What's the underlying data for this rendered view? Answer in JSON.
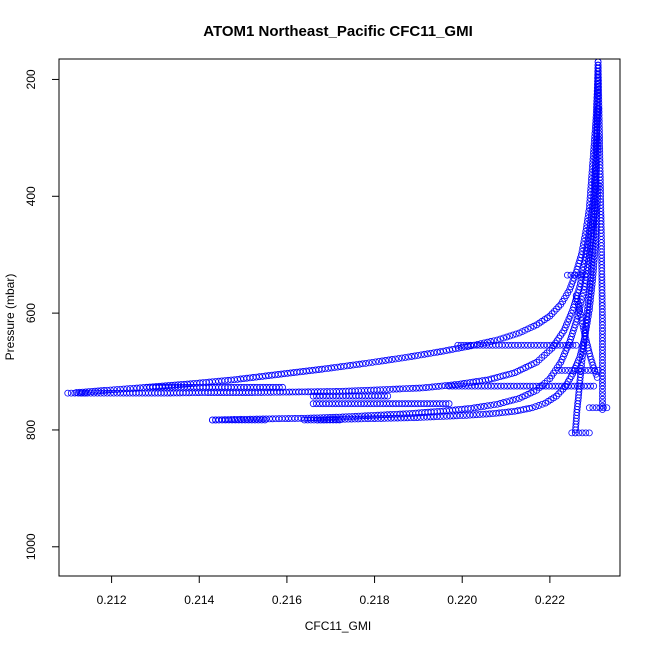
{
  "chart_data": {
    "type": "scatter",
    "title": "ATOM1 Northeast_Pacific CFC11_GMI",
    "xlabel": "CFC11_GMI",
    "ylabel": "Pressure (mbar)",
    "xlim": [
      0.2108,
      0.2236
    ],
    "ylim": [
      1050,
      165
    ],
    "y_reversed": true,
    "grid": false,
    "x_ticks": [
      "0.212",
      "0.214",
      "0.216",
      "0.218",
      "0.220",
      "0.222"
    ],
    "x_tick_values": [
      0.212,
      0.214,
      0.216,
      0.218,
      0.22,
      0.222
    ],
    "y_ticks": [
      "200",
      "400",
      "600",
      "800",
      "1000"
    ],
    "y_tick_values": [
      200,
      400,
      600,
      800,
      1000
    ],
    "marker": "open-circle",
    "color": "#0000ff",
    "series": [
      {
        "x": [
          0.2231,
          0.22308,
          0.22305,
          0.223,
          0.22295,
          0.2229,
          0.22282,
          0.22272,
          0.2226,
          0.22245,
          0.22225,
          0.222,
          0.2217,
          0.2213,
          0.2208,
          0.2202,
          0.2195,
          0.2187,
          0.2178,
          0.2168,
          0.2158,
          0.2148,
          0.2138,
          0.2128,
          0.2119,
          0.2112
        ],
        "y": [
          170,
          220,
          270,
          320,
          370,
          420,
          460,
          500,
          530,
          560,
          585,
          605,
          620,
          634,
          646,
          656,
          666,
          676,
          686,
          696,
          705,
          714,
          721,
          727,
          732,
          736
        ]
      },
      {
        "x": [
          0.2231,
          0.22305,
          0.223,
          0.2229,
          0.2228,
          0.22268,
          0.22252,
          0.22232,
          0.22205,
          0.2217,
          0.2212,
          0.2206,
          0.2199,
          0.2191,
          0.2182,
          0.2172,
          0.2162,
          0.2152,
          0.2142,
          0.2132,
          0.2122,
          0.2113
        ],
        "y": [
          250,
          330,
          400,
          460,
          510,
          555,
          595,
          630,
          660,
          684,
          702,
          714,
          722,
          728,
          731,
          734,
          735,
          736,
          736,
          737,
          737,
          737
        ]
      },
      {
        "x": [
          0.2231,
          0.22302,
          0.2229,
          0.22278,
          0.22262,
          0.22245,
          0.22225,
          0.222,
          0.2217,
          0.2213,
          0.2208,
          0.2202,
          0.2195,
          0.2188,
          0.218,
          0.2172,
          0.2164,
          0.2156,
          0.2148,
          0.2143
        ],
        "y": [
          300,
          420,
          500,
          560,
          610,
          650,
          684,
          712,
          732,
          746,
          756,
          763,
          768,
          772,
          775,
          778,
          780,
          781,
          782,
          783
        ]
      },
      {
        "x": [
          0.2231,
          0.22305,
          0.22298,
          0.2229,
          0.2228,
          0.22268,
          0.22252,
          0.22235,
          0.22215,
          0.2219,
          0.2216,
          0.2212,
          0.2207,
          0.2201,
          0.2195,
          0.2189,
          0.2183,
          0.2177,
          0.2171,
          0.2167
        ],
        "y": [
          380,
          470,
          540,
          595,
          640,
          676,
          704,
          726,
          742,
          754,
          762,
          768,
          772,
          775,
          777,
          779,
          780,
          781,
          782,
          783
        ]
      },
      {
        "x": [
          0.2231,
          0.22308,
          0.22305,
          0.22302,
          0.22298,
          0.22292,
          0.22285,
          0.22278,
          0.22272,
          0.22268,
          0.22265,
          0.22262,
          0.2226,
          0.22258
        ],
        "y": [
          180,
          260,
          340,
          420,
          490,
          550,
          600,
          650,
          690,
          720,
          745,
          765,
          785,
          805
        ]
      },
      {
        "x": [
          0.2231,
          0.22312,
          0.22314,
          0.22316,
          0.22318,
          0.22319,
          0.2232,
          0.2232,
          0.2232,
          0.2232
        ],
        "y": [
          170,
          250,
          330,
          410,
          490,
          560,
          620,
          680,
          730,
          765
        ]
      },
      {
        "x": [
          0.2226,
          0.22268,
          0.22276,
          0.22284,
          0.22292,
          0.223,
          0.22308
        ],
        "y": [
          570,
          596,
          624,
          650,
          674,
          694,
          710
        ]
      },
      {
        "x": [
          0.2199,
          0.2212,
          0.2226
        ],
        "y": [
          655,
          655,
          655
        ]
      },
      {
        "x": [
          0.2197,
          0.2214,
          0.223
        ],
        "y": [
          725,
          725,
          725
        ]
      },
      {
        "x": [
          0.2222,
          0.2231
        ],
        "y": [
          698,
          698
        ]
      },
      {
        "x": [
          0.2166,
          0.2182,
          0.2197
        ],
        "y": [
          755,
          755,
          755
        ]
      },
      {
        "x": [
          0.2166,
          0.2175,
          0.2183
        ],
        "y": [
          742,
          742,
          742
        ]
      },
      {
        "x": [
          0.2128,
          0.2138,
          0.2148,
          0.2159
        ],
        "y": [
          727,
          727,
          727,
          727
        ]
      },
      {
        "x": [
          0.211,
          0.2114
        ],
        "y": [
          737,
          737
        ]
      },
      {
        "x": [
          0.2143,
          0.2155
        ],
        "y": [
          783,
          783
        ]
      },
      {
        "x": [
          0.2164,
          0.2172
        ],
        "y": [
          783,
          783
        ]
      },
      {
        "x": [
          0.2225,
          0.2229
        ],
        "y": [
          805,
          805
        ]
      },
      {
        "x": [
          0.2229,
          0.2233
        ],
        "y": [
          762,
          762
        ]
      },
      {
        "x": [
          0.2224,
          0.2228
        ],
        "y": [
          535,
          535
        ]
      }
    ]
  }
}
